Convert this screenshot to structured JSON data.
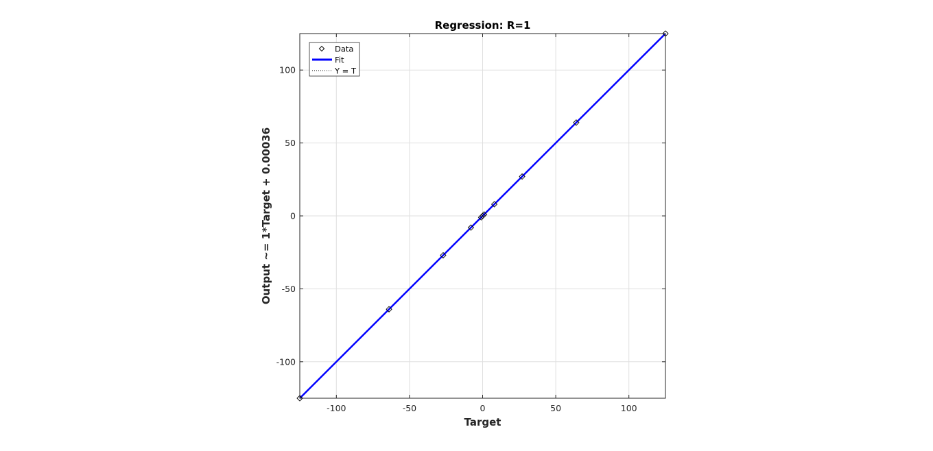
{
  "chart_data": {
    "type": "scatter",
    "title": "Regression: R=1",
    "xlabel": "Target",
    "ylabel": "Output ~= 1*Target + 0.00036",
    "xlim": [
      -125,
      125
    ],
    "ylim": [
      -125,
      125
    ],
    "xticks": [
      -100,
      -50,
      0,
      50,
      100
    ],
    "yticks": [
      -100,
      -50,
      0,
      50,
      100
    ],
    "grid": true,
    "legend_position": "top-left",
    "legend": [
      {
        "label": "Data",
        "style": "marker",
        "color": "#000000"
      },
      {
        "label": "Fit",
        "style": "line",
        "color": "#0000ff"
      },
      {
        "label": "Y = T",
        "style": "dotted",
        "color": "#000000"
      }
    ],
    "series": [
      {
        "name": "Data",
        "x": [
          -125,
          -64,
          -27,
          -8,
          -1,
          0,
          1,
          8,
          27,
          64,
          125
        ],
        "y": [
          -125,
          -64,
          -27,
          -8,
          -1,
          0,
          1,
          8,
          27,
          64,
          125
        ]
      }
    ],
    "fit": {
      "slope": 1,
      "intercept": 0.00036,
      "color": "#0000ff"
    },
    "identity_line": {
      "color": "#000000"
    }
  }
}
